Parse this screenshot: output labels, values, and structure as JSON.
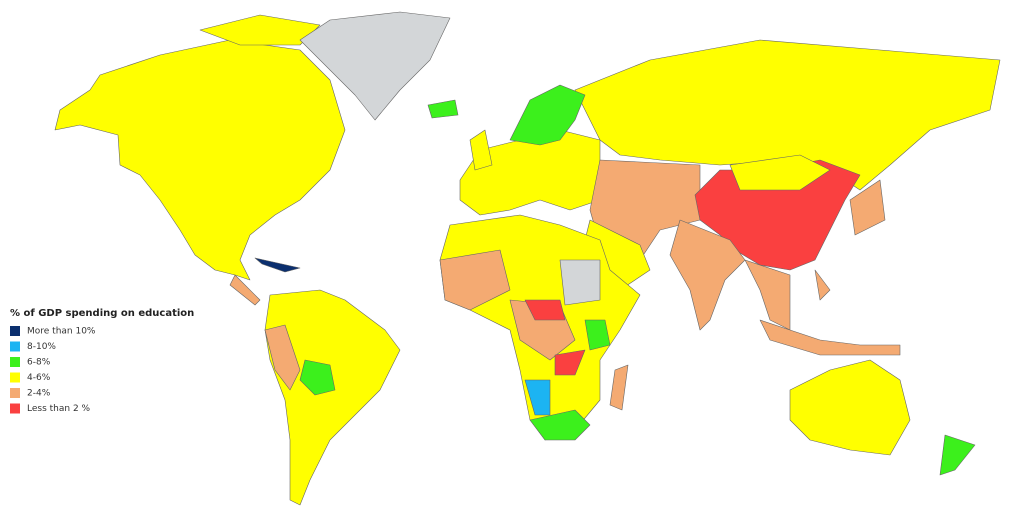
{
  "legend": {
    "title": "% of GDP spending on education",
    "items": [
      {
        "label": "More than 10%",
        "color": "#0b2f6e"
      },
      {
        "label": "8-10%",
        "color": "#1cb4f2"
      },
      {
        "label": "6-8%",
        "color": "#3cf01c"
      },
      {
        "label": "4-6%",
        "color": "#ffff00"
      },
      {
        "label": "2-4%",
        "color": "#f4aa72"
      },
      {
        "label": "Less than 2 %",
        "color": "#fa4040"
      }
    ]
  }
}
